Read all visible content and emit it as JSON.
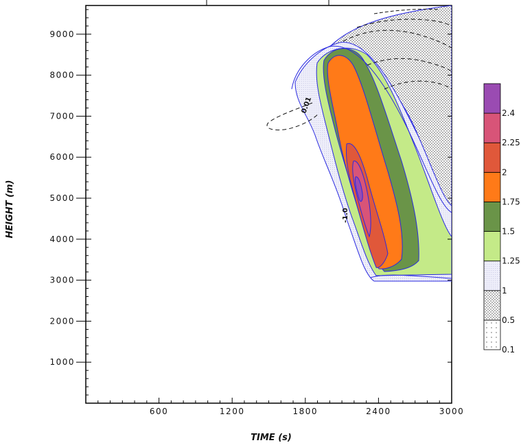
{
  "chart_data": {
    "type": "contour",
    "xlabel": "TIME (s)",
    "ylabel": "HEIGHT (m)",
    "xlim": [
      0,
      3000
    ],
    "ylim": [
      0,
      9700
    ],
    "x_ticks": [
      600,
      1200,
      1800,
      2400,
      3000
    ],
    "x_tick_labels": [
      "600",
      "1200",
      "1800",
      "2400",
      "3000"
    ],
    "y_ticks": [
      1000,
      2000,
      3000,
      4000,
      5000,
      6000,
      7000,
      8000,
      9000
    ],
    "y_tick_labels": [
      "1000",
      "2000",
      "3000",
      "4000",
      "5000",
      "6000",
      "7000",
      "8000",
      "9000"
    ],
    "colorbar": {
      "levels": [
        {
          "label": "0.1",
          "value": 0.1,
          "color": "#ffffff",
          "pattern": "sparse-dots"
        },
        {
          "label": "0.5",
          "value": 0.5,
          "color": "#ffffff",
          "pattern": "dense-dots"
        },
        {
          "label": "1",
          "value": 1,
          "color": "#eeeefa",
          "pattern": "fine-dots"
        },
        {
          "label": "1.25",
          "value": 1.25,
          "color": "#c4ea88"
        },
        {
          "label": "1.5",
          "value": 1.5,
          "color": "#6a9448"
        },
        {
          "label": "1.75",
          "value": 1.75,
          "color": "#ff7a18"
        },
        {
          "label": "2",
          "value": 2,
          "color": "#e0583a"
        },
        {
          "label": "2.25",
          "value": 2.25,
          "color": "#d85478"
        },
        {
          "label": "2.4",
          "value": 2.4,
          "color": "#9a4bb2"
        }
      ]
    },
    "contour_labels": [
      "0.01",
      "-1.0"
    ],
    "colors": {
      "contour_line": "#2a2ae0",
      "dashed_line": "#111111"
    }
  }
}
